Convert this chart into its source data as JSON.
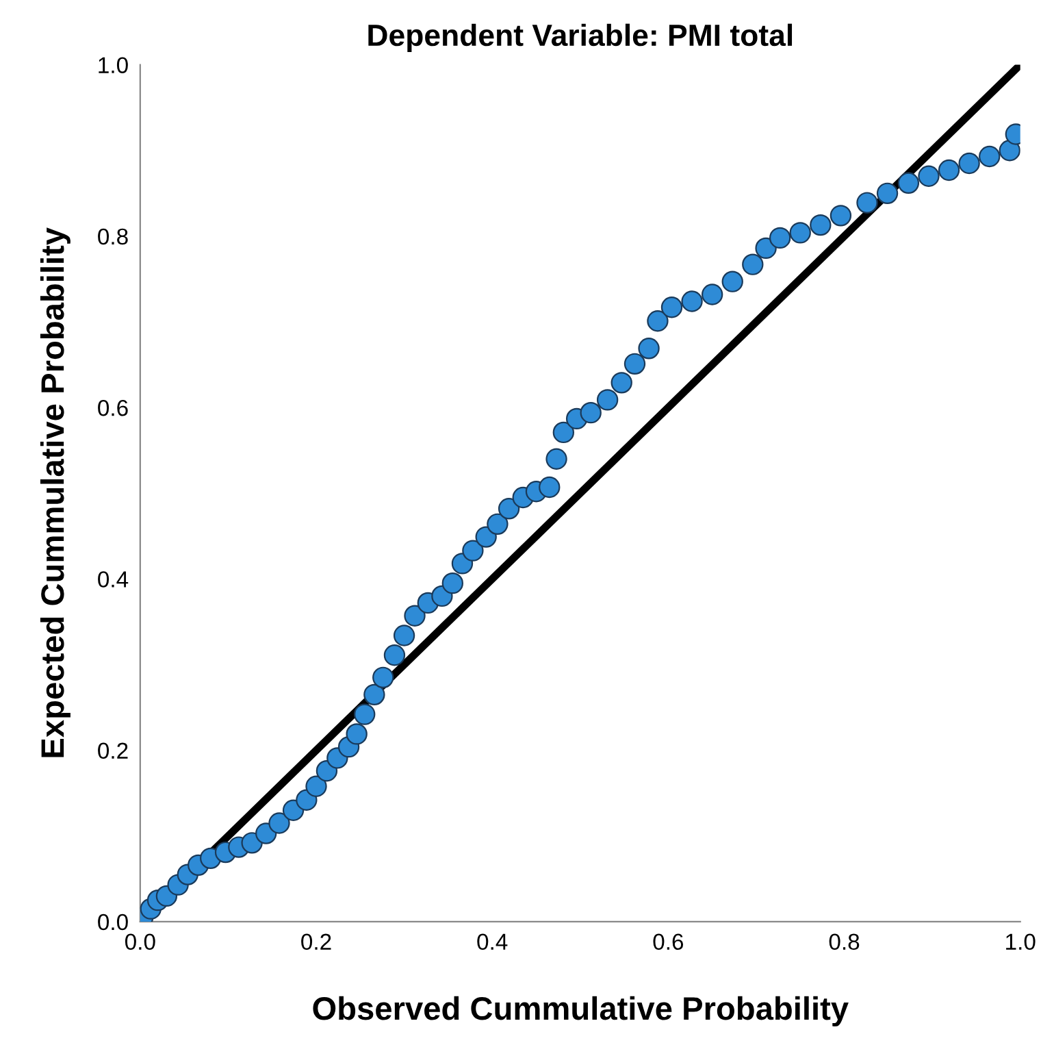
{
  "chart_data": {
    "type": "scatter",
    "title": "Dependent Variable: PMI total",
    "xlabel": "Observed Cummulative Probability",
    "ylabel": "Expected Cummulative Probability",
    "xlim": [
      0,
      1
    ],
    "ylim": [
      0,
      1
    ],
    "xticks": [
      {
        "value": 0,
        "label": "0.0"
      },
      {
        "value": 0.2,
        "label": "0.2"
      },
      {
        "value": 0.4,
        "label": "0.4"
      },
      {
        "value": 0.6,
        "label": "0.6"
      },
      {
        "value": 0.8,
        "label": "0.8"
      },
      {
        "value": 1,
        "label": "1.0"
      }
    ],
    "yticks": [
      {
        "value": 0,
        "label": "0.0"
      },
      {
        "value": 0.2,
        "label": "0.2"
      },
      {
        "value": 0.4,
        "label": "0.4"
      },
      {
        "value": 0.6,
        "label": "0.6"
      },
      {
        "value": 0.8,
        "label": "0.8"
      },
      {
        "value": 1,
        "label": "1.0"
      }
    ],
    "grid": false,
    "legend": false,
    "marker": "circle",
    "series": [
      {
        "type": "line",
        "marker": "none",
        "color": "#000000",
        "x": [
          0,
          1
        ],
        "values": [
          0,
          1
        ]
      },
      {
        "color": "#2e8bd6",
        "x": [
          0.003,
          0.012,
          0.02,
          0.03,
          0.043,
          0.054,
          0.066,
          0.08,
          0.097,
          0.112,
          0.127,
          0.143,
          0.158,
          0.174,
          0.189,
          0.2,
          0.212,
          0.224,
          0.237,
          0.246,
          0.255,
          0.266,
          0.276,
          0.289,
          0.3,
          0.312,
          0.327,
          0.343,
          0.355,
          0.366,
          0.378,
          0.393,
          0.406,
          0.419,
          0.435,
          0.45,
          0.465,
          0.473,
          0.481,
          0.496,
          0.512,
          0.531,
          0.547,
          0.562,
          0.578,
          0.588,
          0.604,
          0.627,
          0.65,
          0.673,
          0.696,
          0.711,
          0.727,
          0.75,
          0.773,
          0.796,
          0.826,
          0.849,
          0.873,
          0.896,
          0.919,
          0.942,
          0.965,
          0.988,
          0.995
        ],
        "values": [
          0.005,
          0.015,
          0.025,
          0.03,
          0.043,
          0.055,
          0.066,
          0.074,
          0.081,
          0.087,
          0.092,
          0.103,
          0.115,
          0.13,
          0.142,
          0.158,
          0.176,
          0.191,
          0.204,
          0.219,
          0.242,
          0.265,
          0.285,
          0.311,
          0.334,
          0.357,
          0.372,
          0.38,
          0.395,
          0.418,
          0.433,
          0.449,
          0.464,
          0.482,
          0.495,
          0.502,
          0.507,
          0.54,
          0.571,
          0.587,
          0.594,
          0.609,
          0.629,
          0.651,
          0.669,
          0.701,
          0.717,
          0.724,
          0.732,
          0.747,
          0.767,
          0.786,
          0.798,
          0.804,
          0.813,
          0.824,
          0.839,
          0.85,
          0.862,
          0.87,
          0.877,
          0.885,
          0.893,
          0.9,
          0.919
        ]
      }
    ]
  }
}
